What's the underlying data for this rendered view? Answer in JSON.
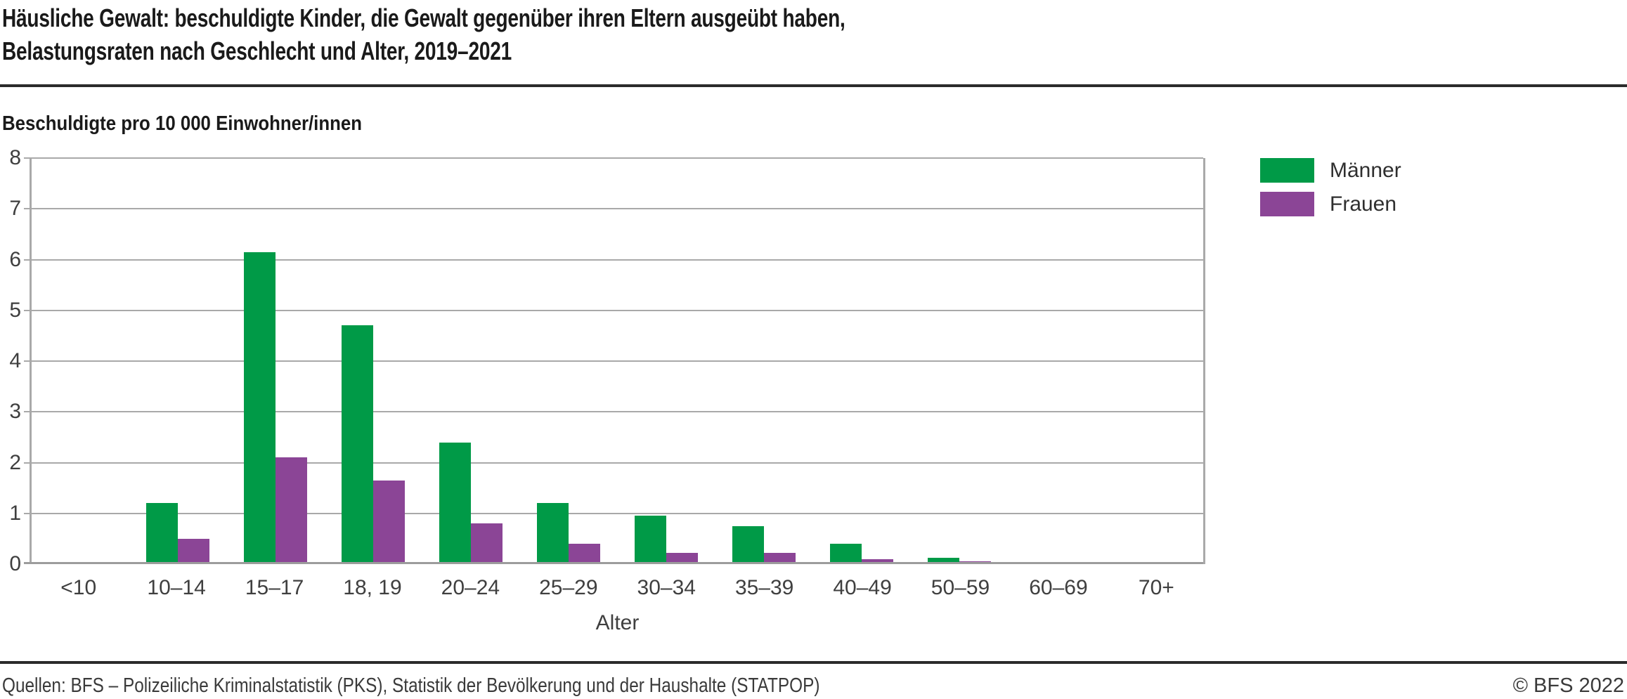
{
  "header": {
    "title_line1": "Häusliche Gewalt: beschuldigte Kinder, die Gewalt gegenüber ihren Eltern ausgeübt haben,",
    "title_line2": "Belastungsraten nach Geschlecht und Alter, 2019–2021"
  },
  "chart": {
    "unit_label": "Beschuldigte pro 10 000 Einwohner/innen",
    "x_axis_title": "Alter"
  },
  "chart_data": {
    "type": "bar",
    "title": "Häusliche Gewalt: beschuldigte Kinder, die Gewalt gegenüber ihren Eltern ausgeübt haben, Belastungsraten nach Geschlecht und Alter, 2019–2021",
    "ylabel": "Beschuldigte pro 10 000 Einwohner/innen",
    "xlabel": "Alter",
    "ylim": [
      0,
      8
    ],
    "yticks": [
      0,
      1,
      2,
      3,
      4,
      5,
      6,
      7,
      8
    ],
    "grid": true,
    "legend_position": "top-right",
    "categories": [
      "<10",
      "10–14",
      "15–17",
      "18, 19",
      "20–24",
      "25–29",
      "30–34",
      "35–39",
      "40–49",
      "50–59",
      "60–69",
      "70+"
    ],
    "series": [
      {
        "name": "Männer",
        "color": "#009a47",
        "values": [
          0,
          1.2,
          6.15,
          4.7,
          2.4,
          1.2,
          0.95,
          0.75,
          0.4,
          0.12,
          0.02,
          0
        ]
      },
      {
        "name": "Frauen",
        "color": "#8b4596",
        "values": [
          0,
          0.5,
          2.1,
          1.65,
          0.8,
          0.4,
          0.22,
          0.22,
          0.1,
          0.05,
          0.03,
          0
        ]
      }
    ]
  },
  "footer": {
    "sources": "Quellen: BFS – Polizeiliche Kriminalstatistik (PKS), Statistik der Bevölkerung und der Haushalte (STATPOP)",
    "copyright": "© BFS 2022"
  },
  "style": {
    "grid_color": "#a9a9a9",
    "axis_color": "#9c9c9c",
    "rule_color": "#2b2b2b"
  }
}
